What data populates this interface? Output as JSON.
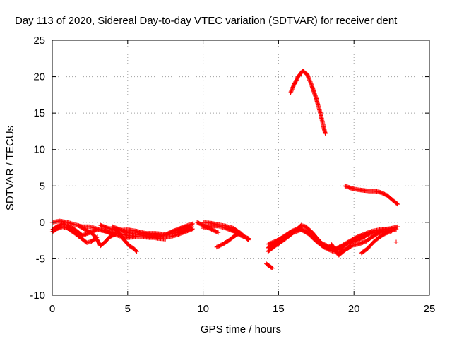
{
  "chart_data": {
    "type": "scatter",
    "title": "Day 113 of 2020, Sidereal Day-to-day VTEC variation (SDTVAR) for receiver dent",
    "xlabel": "GPS time / hours",
    "ylabel": "SDTVAR / TECUs",
    "xlim": [
      0,
      25
    ],
    "ylim": [
      -10,
      25
    ],
    "xticks": [
      0,
      5,
      10,
      15,
      20,
      25
    ],
    "yticks": [
      -10,
      -5,
      0,
      5,
      10,
      15,
      20,
      25
    ],
    "grid": true,
    "marker": "+",
    "color": "#ff0000",
    "series": [
      {
        "name": "trace-1",
        "points": [
          [
            0,
            0.0
          ],
          [
            0.5,
            0.2
          ],
          [
            1.0,
            0.0
          ],
          [
            1.5,
            -0.3
          ],
          [
            2.0,
            -0.6
          ],
          [
            2.5,
            -0.6
          ],
          [
            3.0,
            -0.9
          ],
          [
            3.5,
            -1.2
          ],
          [
            4.0,
            -1.4
          ],
          [
            4.5,
            -1.6
          ],
          [
            5.0,
            -1.8
          ],
          [
            5.5,
            -1.9
          ],
          [
            6.0,
            -2.0
          ],
          [
            6.5,
            -2.1
          ],
          [
            7.0,
            -2.0
          ],
          [
            7.5,
            -1.7
          ],
          [
            8.0,
            -1.2
          ],
          [
            8.5,
            -0.8
          ],
          [
            9.0,
            -0.4
          ],
          [
            9.3,
            -0.2
          ]
        ]
      },
      {
        "name": "trace-2",
        "points": [
          [
            0,
            -1.0
          ],
          [
            0.3,
            -0.6
          ],
          [
            0.7,
            -0.2
          ],
          [
            1.0,
            -0.4
          ],
          [
            1.5,
            -1.0
          ],
          [
            2.0,
            -1.8
          ],
          [
            2.5,
            -1.4
          ],
          [
            3.0,
            -1.0
          ],
          [
            3.5,
            -1.2
          ],
          [
            4.0,
            -1.6
          ],
          [
            4.5,
            -1.9
          ],
          [
            5.0,
            -2.1
          ],
          [
            5.5,
            -2.0
          ]
        ]
      },
      {
        "name": "trace-3",
        "points": [
          [
            0,
            -1.3
          ],
          [
            0.3,
            -0.9
          ],
          [
            0.7,
            -0.6
          ],
          [
            1.0,
            -0.8
          ],
          [
            1.5,
            -1.5
          ],
          [
            2.0,
            -2.3
          ],
          [
            2.3,
            -2.8
          ],
          [
            2.6,
            -2.6
          ],
          [
            3.0,
            -2.0
          ]
        ]
      },
      {
        "name": "trace-4",
        "points": [
          [
            1.7,
            -0.4
          ],
          [
            2.2,
            -1.0
          ],
          [
            2.7,
            -1.6
          ],
          [
            3.0,
            -2.5
          ],
          [
            3.2,
            -3.2
          ],
          [
            3.5,
            -2.7
          ],
          [
            3.8,
            -2.0
          ],
          [
            4.2,
            -1.6
          ]
        ]
      },
      {
        "name": "trace-5",
        "points": [
          [
            4.2,
            -1.0
          ],
          [
            4.5,
            -1.6
          ],
          [
            4.8,
            -2.5
          ],
          [
            5.1,
            -3.2
          ],
          [
            5.4,
            -3.6
          ],
          [
            5.6,
            -4.0
          ]
        ]
      },
      {
        "name": "trace-6",
        "points": [
          [
            4.0,
            -0.6
          ],
          [
            4.5,
            -1.0
          ],
          [
            5.0,
            -1.4
          ],
          [
            5.5,
            -1.6
          ],
          [
            6.0,
            -1.8
          ],
          [
            6.5,
            -2.0
          ],
          [
            7.0,
            -2.2
          ],
          [
            7.5,
            -2.3
          ]
        ]
      },
      {
        "name": "trace-7",
        "points": [
          [
            3.2,
            -0.4
          ],
          [
            3.7,
            -0.8
          ],
          [
            4.3,
            -1.1
          ],
          [
            5.0,
            -1.0
          ],
          [
            5.6,
            -1.2
          ],
          [
            6.2,
            -1.5
          ],
          [
            6.8,
            -1.5
          ],
          [
            7.3,
            -1.6
          ],
          [
            7.8,
            -1.6
          ],
          [
            8.3,
            -1.4
          ],
          [
            8.8,
            -1.0
          ],
          [
            9.2,
            -0.6
          ]
        ]
      },
      {
        "name": "trace-8",
        "points": [
          [
            6.0,
            -1.5
          ],
          [
            6.6,
            -1.8
          ],
          [
            7.2,
            -2.0
          ],
          [
            7.8,
            -2.0
          ],
          [
            8.3,
            -1.7
          ],
          [
            8.8,
            -1.3
          ],
          [
            9.3,
            -0.9
          ]
        ]
      },
      {
        "name": "trace-9",
        "points": [
          [
            10.0,
            0.0
          ],
          [
            10.5,
            -0.1
          ],
          [
            11.0,
            -0.3
          ],
          [
            11.5,
            -0.5
          ],
          [
            12.0,
            -0.8
          ],
          [
            12.5,
            -1.5
          ],
          [
            13.0,
            -2.4
          ]
        ]
      },
      {
        "name": "trace-10",
        "points": [
          [
            10.0,
            -0.8
          ],
          [
            10.5,
            -0.5
          ],
          [
            11.0,
            -0.5
          ],
          [
            11.5,
            -0.8
          ],
          [
            12.0,
            -1.2
          ],
          [
            12.5,
            -1.8
          ],
          [
            13.0,
            -2.2
          ]
        ]
      },
      {
        "name": "trace-11",
        "points": [
          [
            10.9,
            -3.4
          ],
          [
            11.3,
            -3.0
          ],
          [
            11.7,
            -2.5
          ],
          [
            12.0,
            -2.0
          ],
          [
            12.3,
            -1.6
          ]
        ]
      },
      {
        "name": "trace-12",
        "points": [
          [
            9.6,
            0.0
          ],
          [
            10.0,
            -0.4
          ],
          [
            10.5,
            -0.9
          ],
          [
            11.0,
            -1.4
          ]
        ]
      },
      {
        "name": "trace-13",
        "points": [
          [
            14.3,
            -4.0
          ],
          [
            14.8,
            -3.2
          ],
          [
            15.3,
            -2.5
          ],
          [
            15.8,
            -1.7
          ],
          [
            16.2,
            -1.0
          ],
          [
            16.5,
            -0.4
          ],
          [
            16.8,
            -0.6
          ],
          [
            17.2,
            -1.3
          ],
          [
            17.6,
            -2.3
          ],
          [
            18.0,
            -3.2
          ],
          [
            18.5,
            -3.5
          ],
          [
            19.0,
            -3.8
          ],
          [
            19.5,
            -3.0
          ],
          [
            20.0,
            -2.6
          ],
          [
            20.5,
            -2.2
          ],
          [
            21.0,
            -1.6
          ],
          [
            21.5,
            -1.3
          ],
          [
            22.0,
            -1.0
          ],
          [
            22.5,
            -0.8
          ],
          [
            22.9,
            -0.6
          ]
        ]
      },
      {
        "name": "trace-14",
        "points": [
          [
            14.3,
            -3.0
          ],
          [
            14.8,
            -2.6
          ],
          [
            15.3,
            -2.0
          ],
          [
            15.8,
            -1.3
          ],
          [
            16.3,
            -0.8
          ],
          [
            16.8,
            -1.2
          ],
          [
            17.3,
            -2.0
          ],
          [
            17.8,
            -2.8
          ],
          [
            18.3,
            -3.3
          ],
          [
            18.8,
            -3.6
          ],
          [
            19.2,
            -3.2
          ],
          [
            19.7,
            -2.6
          ],
          [
            20.2,
            -2.0
          ],
          [
            20.7,
            -1.6
          ],
          [
            21.2,
            -1.2
          ],
          [
            21.7,
            -1.0
          ],
          [
            22.2,
            -0.9
          ],
          [
            22.8,
            -0.9
          ]
        ]
      },
      {
        "name": "trace-15",
        "points": [
          [
            14.3,
            -3.5
          ],
          [
            14.7,
            -2.9
          ],
          [
            15.2,
            -2.3
          ],
          [
            15.6,
            -1.8
          ],
          [
            16.0,
            -1.4
          ],
          [
            16.5,
            -1.0
          ],
          [
            17.0,
            -1.6
          ],
          [
            17.5,
            -2.6
          ],
          [
            18.0,
            -3.4
          ],
          [
            18.5,
            -3.9
          ],
          [
            19.0,
            -4.2
          ],
          [
            19.4,
            -3.8
          ],
          [
            19.8,
            -3.3
          ]
        ]
      },
      {
        "name": "trace-16",
        "points": [
          [
            18.5,
            -3.0
          ],
          [
            19.0,
            -4.5
          ],
          [
            19.4,
            -3.8
          ],
          [
            19.8,
            -3.2
          ],
          [
            20.3,
            -3.0
          ],
          [
            20.8,
            -2.6
          ],
          [
            21.2,
            -2.0
          ],
          [
            21.6,
            -1.5
          ],
          [
            22.0,
            -1.2
          ],
          [
            22.5,
            -1.1
          ],
          [
            22.8,
            -1.0
          ]
        ]
      },
      {
        "name": "trace-17",
        "points": [
          [
            20.5,
            -4.2
          ],
          [
            20.9,
            -3.6
          ],
          [
            21.3,
            -2.7
          ],
          [
            21.7,
            -2.0
          ],
          [
            22.1,
            -1.5
          ],
          [
            22.5,
            -1.2
          ]
        ]
      },
      {
        "name": "trace-18",
        "points": [
          [
            14.2,
            -5.7
          ],
          [
            14.4,
            -6.0
          ],
          [
            14.6,
            -6.3
          ]
        ]
      },
      {
        "name": "trace-19",
        "points": [
          [
            22.8,
            -2.7
          ]
        ]
      },
      {
        "name": "trace-20",
        "points": [
          [
            15.8,
            17.8
          ],
          [
            16.0,
            18.8
          ],
          [
            16.3,
            20.0
          ],
          [
            16.6,
            20.8
          ],
          [
            16.9,
            20.3
          ],
          [
            17.2,
            18.8
          ],
          [
            17.5,
            17.0
          ],
          [
            17.8,
            14.8
          ],
          [
            18.0,
            13.0
          ],
          [
            18.1,
            12.2
          ]
        ]
      },
      {
        "name": "trace-21",
        "points": [
          [
            19.4,
            5.0
          ],
          [
            19.8,
            4.7
          ],
          [
            20.2,
            4.5
          ],
          [
            20.6,
            4.4
          ],
          [
            21.0,
            4.3
          ],
          [
            21.4,
            4.3
          ],
          [
            21.8,
            4.1
          ],
          [
            22.2,
            3.7
          ],
          [
            22.6,
            3.0
          ],
          [
            22.9,
            2.5
          ]
        ]
      }
    ]
  }
}
